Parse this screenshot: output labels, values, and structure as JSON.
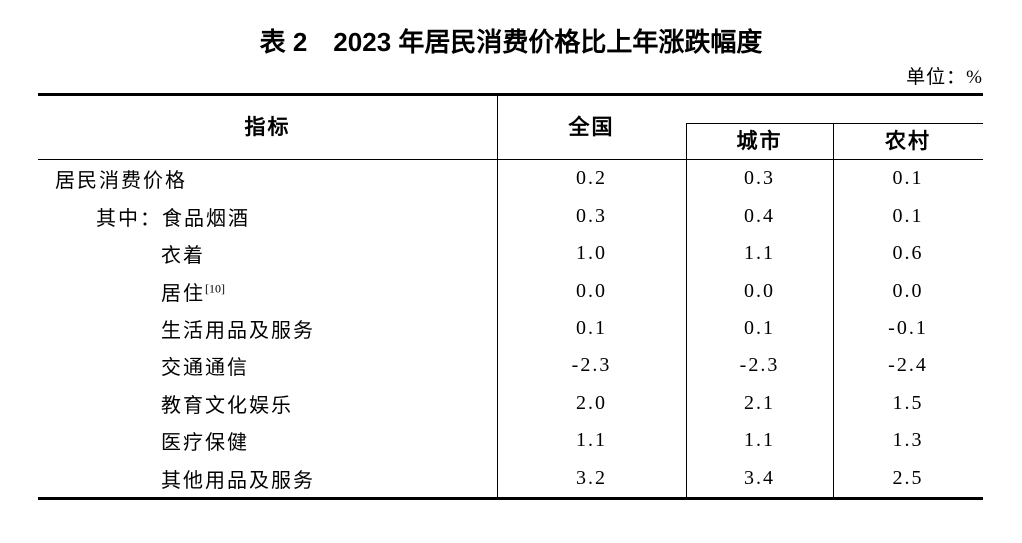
{
  "title": "表 2　2023 年居民消费价格比上年涨跌幅度",
  "unit_label": "单位：%",
  "colors": {
    "text": "#000000",
    "lines": "#000000",
    "background": "#ffffff"
  },
  "table": {
    "columns": {
      "indicator": "指标",
      "national": "全国",
      "urban": "城市",
      "rural": "农村"
    },
    "rows": [
      {
        "indent": 0,
        "prefix": "",
        "label": "居民消费价格",
        "sup": "",
        "national": "0.2",
        "urban": "0.3",
        "rural": "0.1"
      },
      {
        "indent": 1,
        "prefix": "其中：",
        "label": "食品烟酒",
        "sup": "",
        "national": "0.3",
        "urban": "0.4",
        "rural": "0.1"
      },
      {
        "indent": 2,
        "prefix": "",
        "label": "衣着",
        "sup": "",
        "national": "1.0",
        "urban": "1.1",
        "rural": "0.6"
      },
      {
        "indent": 2,
        "prefix": "",
        "label": "居住",
        "sup": "[10]",
        "national": "0.0",
        "urban": "0.0",
        "rural": "0.0"
      },
      {
        "indent": 2,
        "prefix": "",
        "label": "生活用品及服务",
        "sup": "",
        "national": "0.1",
        "urban": "0.1",
        "rural": "-0.1"
      },
      {
        "indent": 2,
        "prefix": "",
        "label": "交通通信",
        "sup": "",
        "national": "-2.3",
        "urban": "-2.3",
        "rural": "-2.4"
      },
      {
        "indent": 2,
        "prefix": "",
        "label": "教育文化娱乐",
        "sup": "",
        "national": "2.0",
        "urban": "2.1",
        "rural": "1.5"
      },
      {
        "indent": 2,
        "prefix": "",
        "label": "医疗保健",
        "sup": "",
        "national": "1.1",
        "urban": "1.1",
        "rural": "1.3"
      },
      {
        "indent": 2,
        "prefix": "",
        "label": "其他用品及服务",
        "sup": "",
        "national": "3.2",
        "urban": "3.4",
        "rural": "2.5"
      }
    ]
  }
}
